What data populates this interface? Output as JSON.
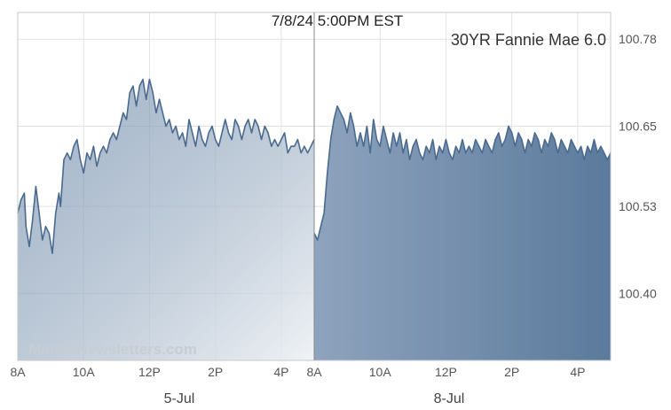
{
  "chart_data": {
    "type": "area",
    "timestamp_label": "7/8/24 5:00PM EST",
    "series_name": "30YR Fannie Mae 6.0",
    "watermark": "MarketNewsletters.com",
    "ylim": [
      100.3,
      100.82
    ],
    "y_ticks": [
      {
        "value": 100.78,
        "label": "100.78"
      },
      {
        "value": 100.65,
        "label": "100.65"
      },
      {
        "value": 100.53,
        "label": "100.53"
      },
      {
        "value": 100.4,
        "label": "100.40"
      }
    ],
    "hours_per_session": 9,
    "x_ticks": [
      {
        "session": 0,
        "hour": 0,
        "label": "8A"
      },
      {
        "session": 0,
        "hour": 2,
        "label": "10A"
      },
      {
        "session": 0,
        "hour": 4,
        "label": "12P"
      },
      {
        "session": 0,
        "hour": 6,
        "label": "2P"
      },
      {
        "session": 0,
        "hour": 8,
        "label": "4P"
      },
      {
        "session": 1,
        "hour": 0,
        "label": "8A"
      },
      {
        "session": 1,
        "hour": 2,
        "label": "10A"
      },
      {
        "session": 1,
        "hour": 4,
        "label": "12P"
      },
      {
        "session": 1,
        "hour": 6,
        "label": "2P"
      },
      {
        "session": 1,
        "hour": 8,
        "label": "4P"
      }
    ],
    "sessions": [
      {
        "date_label": "5-Jul",
        "points": [
          [
            0.0,
            100.52
          ],
          [
            0.1,
            100.54
          ],
          [
            0.2,
            100.55
          ],
          [
            0.25,
            100.5
          ],
          [
            0.35,
            100.47
          ],
          [
            0.45,
            100.51
          ],
          [
            0.55,
            100.56
          ],
          [
            0.65,
            100.52
          ],
          [
            0.75,
            100.48
          ],
          [
            0.85,
            100.5
          ],
          [
            0.95,
            100.49
          ],
          [
            1.05,
            100.46
          ],
          [
            1.15,
            100.52
          ],
          [
            1.25,
            100.55
          ],
          [
            1.3,
            100.53
          ],
          [
            1.4,
            100.6
          ],
          [
            1.5,
            100.61
          ],
          [
            1.6,
            100.6
          ],
          [
            1.7,
            100.62
          ],
          [
            1.8,
            100.63
          ],
          [
            1.9,
            100.6
          ],
          [
            2.0,
            100.58
          ],
          [
            2.1,
            100.61
          ],
          [
            2.2,
            100.6
          ],
          [
            2.3,
            100.62
          ],
          [
            2.4,
            100.59
          ],
          [
            2.5,
            100.61
          ],
          [
            2.6,
            100.62
          ],
          [
            2.7,
            100.61
          ],
          [
            2.8,
            100.63
          ],
          [
            2.9,
            100.64
          ],
          [
            3.0,
            100.63
          ],
          [
            3.1,
            100.65
          ],
          [
            3.2,
            100.67
          ],
          [
            3.3,
            100.66
          ],
          [
            3.4,
            100.7
          ],
          [
            3.5,
            100.71
          ],
          [
            3.6,
            100.68
          ],
          [
            3.7,
            100.71
          ],
          [
            3.8,
            100.72
          ],
          [
            3.9,
            100.69
          ],
          [
            4.0,
            100.72
          ],
          [
            4.1,
            100.7
          ],
          [
            4.2,
            100.67
          ],
          [
            4.3,
            100.69
          ],
          [
            4.4,
            100.67
          ],
          [
            4.5,
            100.65
          ],
          [
            4.6,
            100.66
          ],
          [
            4.7,
            100.64
          ],
          [
            4.8,
            100.65
          ],
          [
            4.9,
            100.63
          ],
          [
            5.0,
            100.64
          ],
          [
            5.1,
            100.62
          ],
          [
            5.2,
            100.66
          ],
          [
            5.3,
            100.64
          ],
          [
            5.4,
            100.62
          ],
          [
            5.5,
            100.65
          ],
          [
            5.6,
            100.63
          ],
          [
            5.7,
            100.62
          ],
          [
            5.8,
            100.64
          ],
          [
            5.9,
            100.65
          ],
          [
            6.0,
            100.63
          ],
          [
            6.1,
            100.62
          ],
          [
            6.2,
            100.64
          ],
          [
            6.3,
            100.66
          ],
          [
            6.4,
            100.64
          ],
          [
            6.5,
            100.63
          ],
          [
            6.6,
            100.66
          ],
          [
            6.7,
            100.65
          ],
          [
            6.8,
            100.63
          ],
          [
            6.9,
            100.65
          ],
          [
            7.0,
            100.66
          ],
          [
            7.1,
            100.64
          ],
          [
            7.2,
            100.66
          ],
          [
            7.3,
            100.65
          ],
          [
            7.4,
            100.63
          ],
          [
            7.5,
            100.65
          ],
          [
            7.6,
            100.64
          ],
          [
            7.7,
            100.62
          ],
          [
            7.8,
            100.63
          ],
          [
            7.9,
            100.62
          ],
          [
            8.0,
            100.63
          ],
          [
            8.1,
            100.64
          ],
          [
            8.2,
            100.61
          ],
          [
            8.3,
            100.62
          ],
          [
            8.4,
            100.62
          ],
          [
            8.5,
            100.63
          ],
          [
            8.6,
            100.61
          ],
          [
            8.7,
            100.62
          ],
          [
            8.8,
            100.61
          ],
          [
            8.9,
            100.62
          ],
          [
            9.0,
            100.63
          ]
        ]
      },
      {
        "date_label": "8-Jul",
        "points": [
          [
            0.0,
            100.49
          ],
          [
            0.1,
            100.48
          ],
          [
            0.2,
            100.5
          ],
          [
            0.3,
            100.52
          ],
          [
            0.4,
            100.58
          ],
          [
            0.5,
            100.63
          ],
          [
            0.6,
            100.66
          ],
          [
            0.7,
            100.68
          ],
          [
            0.8,
            100.67
          ],
          [
            0.9,
            100.66
          ],
          [
            1.0,
            100.64
          ],
          [
            1.1,
            100.67
          ],
          [
            1.2,
            100.65
          ],
          [
            1.3,
            100.62
          ],
          [
            1.4,
            100.64
          ],
          [
            1.5,
            100.62
          ],
          [
            1.6,
            100.65
          ],
          [
            1.7,
            100.61
          ],
          [
            1.8,
            100.66
          ],
          [
            1.9,
            100.63
          ],
          [
            2.0,
            100.62
          ],
          [
            2.1,
            100.65
          ],
          [
            2.2,
            100.63
          ],
          [
            2.3,
            100.61
          ],
          [
            2.4,
            100.64
          ],
          [
            2.5,
            100.62
          ],
          [
            2.6,
            100.64
          ],
          [
            2.7,
            100.61
          ],
          [
            2.8,
            100.63
          ],
          [
            2.9,
            100.6
          ],
          [
            3.0,
            100.62
          ],
          [
            3.1,
            100.63
          ],
          [
            3.2,
            100.61
          ],
          [
            3.3,
            100.6
          ],
          [
            3.4,
            100.62
          ],
          [
            3.5,
            100.61
          ],
          [
            3.6,
            100.63
          ],
          [
            3.7,
            100.6
          ],
          [
            3.8,
            100.62
          ],
          [
            3.9,
            100.61
          ],
          [
            4.0,
            100.63
          ],
          [
            4.1,
            100.61
          ],
          [
            4.2,
            100.6
          ],
          [
            4.3,
            100.62
          ],
          [
            4.4,
            100.61
          ],
          [
            4.5,
            100.63
          ],
          [
            4.6,
            100.61
          ],
          [
            4.7,
            100.62
          ],
          [
            4.8,
            100.61
          ],
          [
            4.9,
            100.63
          ],
          [
            5.0,
            100.62
          ],
          [
            5.1,
            100.61
          ],
          [
            5.2,
            100.63
          ],
          [
            5.3,
            100.62
          ],
          [
            5.4,
            100.61
          ],
          [
            5.5,
            100.63
          ],
          [
            5.6,
            100.64
          ],
          [
            5.7,
            100.62
          ],
          [
            5.8,
            100.63
          ],
          [
            5.9,
            100.65
          ],
          [
            6.0,
            100.64
          ],
          [
            6.1,
            100.62
          ],
          [
            6.2,
            100.64
          ],
          [
            6.3,
            100.63
          ],
          [
            6.4,
            100.61
          ],
          [
            6.5,
            100.63
          ],
          [
            6.6,
            100.62
          ],
          [
            6.7,
            100.64
          ],
          [
            6.8,
            100.63
          ],
          [
            6.9,
            100.61
          ],
          [
            7.0,
            100.63
          ],
          [
            7.1,
            100.62
          ],
          [
            7.2,
            100.64
          ],
          [
            7.3,
            100.63
          ],
          [
            7.4,
            100.61
          ],
          [
            7.5,
            100.63
          ],
          [
            7.6,
            100.62
          ],
          [
            7.7,
            100.61
          ],
          [
            7.8,
            100.63
          ],
          [
            7.9,
            100.62
          ],
          [
            8.0,
            100.61
          ],
          [
            8.1,
            100.62
          ],
          [
            8.2,
            100.6
          ],
          [
            8.3,
            100.62
          ],
          [
            8.4,
            100.61
          ],
          [
            8.5,
            100.63
          ],
          [
            8.6,
            100.61
          ],
          [
            8.7,
            100.62
          ],
          [
            8.8,
            100.61
          ],
          [
            8.9,
            100.6
          ],
          [
            9.0,
            100.61
          ]
        ]
      }
    ],
    "line_color": "#4a6a8f",
    "fill_top_color": "#5b7a9c",
    "fill_bottom_color": "#eef1f5",
    "grid": true
  }
}
